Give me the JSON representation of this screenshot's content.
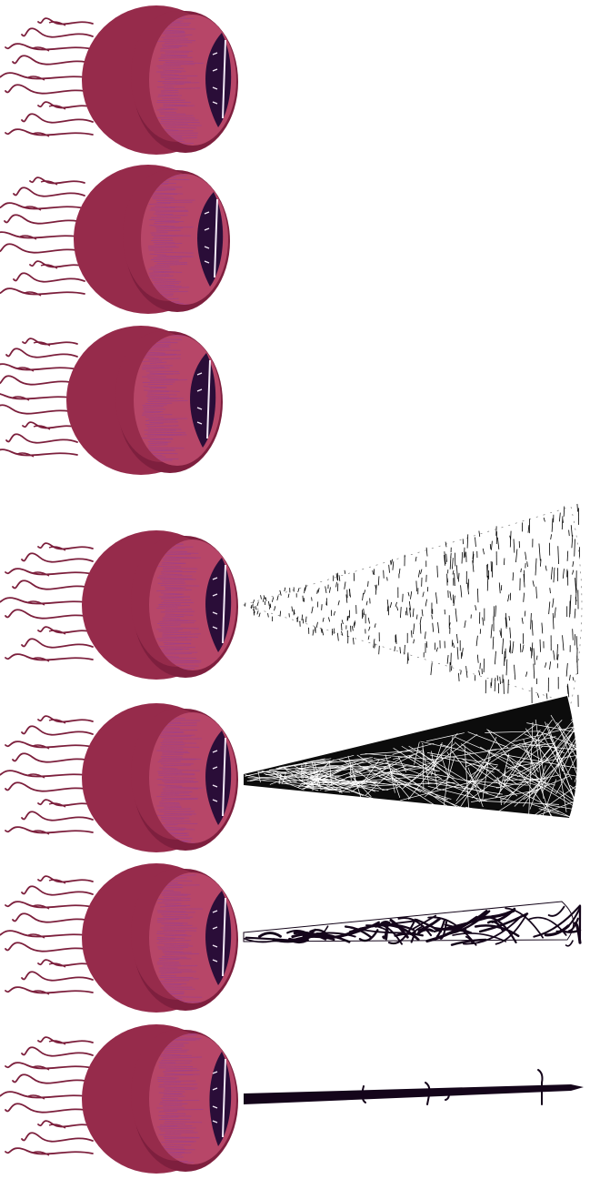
{
  "sprite_sheet": {
    "frames": [
      {
        "id": "idle-look-forward",
        "pupil": "wide",
        "beam": "none"
      },
      {
        "id": "idle-look-shift",
        "pupil": "wide",
        "beam": "none"
      },
      {
        "id": "idle-look-back",
        "pupil": "wide",
        "beam": "none"
      },
      {
        "id": "beam-charge-wide",
        "pupil": "wide",
        "beam": "sparse-hatch"
      },
      {
        "id": "beam-charge-mesh",
        "pupil": "wide",
        "beam": "white-mesh"
      },
      {
        "id": "beam-tighten",
        "pupil": "wide",
        "beam": "dark-tangle"
      },
      {
        "id": "beam-fire",
        "pupil": "narrow",
        "beam": "solid-lance"
      }
    ]
  },
  "palette": {
    "eyeball": "#962b4b",
    "eyeball_shadow": "#7e1f3e",
    "iris": "#b74668",
    "iris_veins": "#9d3f8e",
    "pupil": "#2a0d38",
    "pupil_highlight": "#f2e8f6",
    "tendrils": "#7c1f3c",
    "beam_dark": "#14051a"
  }
}
